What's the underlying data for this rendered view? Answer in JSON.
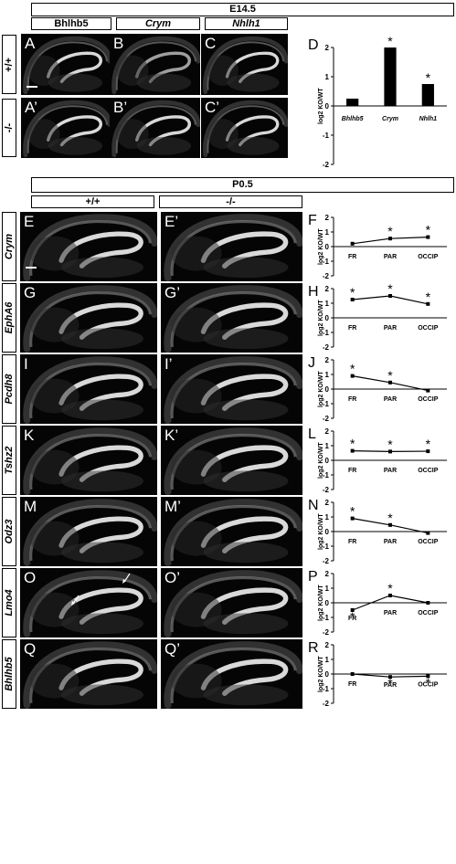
{
  "e145": {
    "stage": "E14.5",
    "genes": [
      "Bhlhb5",
      "Crym",
      "Nhlh1"
    ],
    "rows": [
      "+/+",
      "-/-"
    ],
    "panels": [
      [
        "A",
        "B",
        "C"
      ],
      [
        "A’",
        "B’",
        "C’"
      ]
    ],
    "panel_d_letter": "D"
  },
  "p05": {
    "stage": "P0.5",
    "cols": [
      "+/+",
      "-/-"
    ],
    "genes": [
      "Crym",
      "EphA6",
      "Pcdh8",
      "Tshz2",
      "Odz3",
      "Lmo4",
      "Bhlhb5"
    ],
    "panels": [
      [
        "E",
        "E’"
      ],
      [
        "G",
        "G’"
      ],
      [
        "I",
        "I’"
      ],
      [
        "K",
        "K’"
      ],
      [
        "M",
        "M’"
      ],
      [
        "O",
        "O’"
      ],
      [
        "Q",
        "Q’"
      ]
    ],
    "graph_letters": [
      "F",
      "H",
      "J",
      "L",
      "N",
      "P",
      "R"
    ]
  },
  "chart_data": [
    {
      "id": "D",
      "type": "bar",
      "categories": [
        "Bhlhb5",
        "Crym",
        "Nhlh1"
      ],
      "values": [
        0.25,
        2.0,
        0.75
      ],
      "significant": [
        false,
        true,
        true
      ],
      "ylabel": "log2 KO/WT",
      "ylim": [
        -2,
        2
      ],
      "yticks": [
        -2,
        -1,
        0,
        1,
        2
      ]
    },
    {
      "id": "F",
      "type": "line",
      "categories": [
        "FR",
        "PAR",
        "OCCIP"
      ],
      "values": [
        0.2,
        0.55,
        0.65
      ],
      "significant": [
        false,
        true,
        true
      ],
      "ylabel": "log2 KO/WT",
      "ylim": [
        -2,
        2
      ],
      "yticks": [
        -2,
        -1,
        0,
        1,
        2
      ]
    },
    {
      "id": "H",
      "type": "line",
      "categories": [
        "FR",
        "PAR",
        "OCCIP"
      ],
      "values": [
        1.25,
        1.5,
        0.95
      ],
      "significant": [
        true,
        true,
        true
      ],
      "ylabel": "log2 KO/WT",
      "ylim": [
        -2,
        2
      ],
      "yticks": [
        -2,
        -1,
        0,
        1,
        2
      ]
    },
    {
      "id": "J",
      "type": "line",
      "categories": [
        "FR",
        "PAR",
        "OCCIP"
      ],
      "values": [
        0.9,
        0.45,
        -0.1
      ],
      "significant": [
        true,
        true,
        false
      ],
      "ylabel": "log2 KO/WT",
      "ylim": [
        -2,
        2
      ],
      "yticks": [
        -2,
        -1,
        0,
        1,
        2
      ]
    },
    {
      "id": "L",
      "type": "line",
      "categories": [
        "FR",
        "PAR",
        "OCCIP"
      ],
      "values": [
        0.65,
        0.6,
        0.62
      ],
      "significant": [
        true,
        true,
        true
      ],
      "ylabel": "log2 KO/WT",
      "ylim": [
        -2,
        2
      ],
      "yticks": [
        -2,
        -1,
        0,
        1,
        2
      ]
    },
    {
      "id": "N",
      "type": "line",
      "categories": [
        "FR",
        "PAR",
        "OCCIP"
      ],
      "values": [
        0.9,
        0.45,
        -0.1
      ],
      "significant": [
        true,
        true,
        false
      ],
      "ylabel": "log2 KO/WT",
      "ylim": [
        -2,
        2
      ],
      "yticks": [
        -2,
        -1,
        0,
        1,
        2
      ]
    },
    {
      "id": "P",
      "type": "line",
      "categories": [
        "FR",
        "PAR",
        "OCCIP"
      ],
      "values": [
        -0.5,
        0.5,
        0.0
      ],
      "significant": [
        true,
        true,
        false
      ],
      "ylabel": "log2 KO/WT",
      "ylim": [
        -2,
        2
      ],
      "yticks": [
        -2,
        -1,
        0,
        1,
        2
      ]
    },
    {
      "id": "R",
      "type": "line",
      "categories": [
        "FR",
        "PAR",
        "OCCIP"
      ],
      "values": [
        0.0,
        -0.2,
        -0.15
      ],
      "significant": [
        false,
        true,
        true
      ],
      "ylabel": "log2 KO/WT",
      "ylim": [
        -2,
        2
      ],
      "yticks": [
        -2,
        -1,
        0,
        1,
        2
      ]
    }
  ]
}
